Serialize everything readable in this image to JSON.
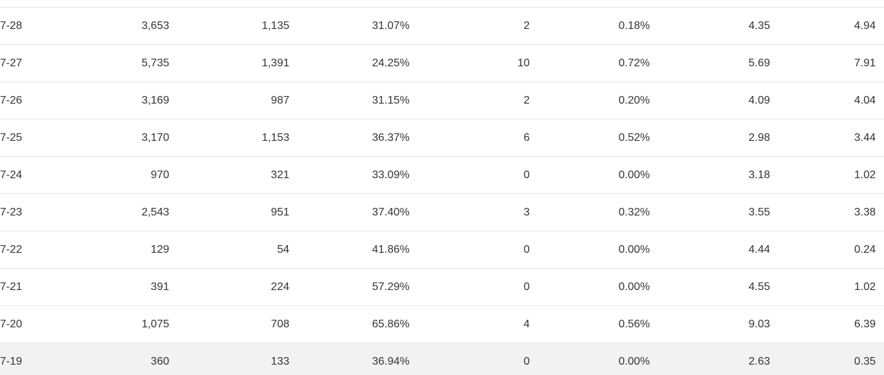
{
  "table": {
    "rows": [
      {
        "date": "7-28",
        "c1": "3,653",
        "c2": "1,135",
        "c3": "31.07%",
        "c4": "2",
        "c5": "0.18%",
        "c6": "4.35",
        "c7": "4.94"
      },
      {
        "date": "7-27",
        "c1": "5,735",
        "c2": "1,391",
        "c3": "24.25%",
        "c4": "10",
        "c5": "0.72%",
        "c6": "5.69",
        "c7": "7.91"
      },
      {
        "date": "7-26",
        "c1": "3,169",
        "c2": "987",
        "c3": "31.15%",
        "c4": "2",
        "c5": "0.20%",
        "c6": "4.09",
        "c7": "4.04"
      },
      {
        "date": "7-25",
        "c1": "3,170",
        "c2": "1,153",
        "c3": "36.37%",
        "c4": "6",
        "c5": "0.52%",
        "c6": "2.98",
        "c7": "3.44"
      },
      {
        "date": "7-24",
        "c1": "970",
        "c2": "321",
        "c3": "33.09%",
        "c4": "0",
        "c5": "0.00%",
        "c6": "3.18",
        "c7": "1.02"
      },
      {
        "date": "7-23",
        "c1": "2,543",
        "c2": "951",
        "c3": "37.40%",
        "c4": "3",
        "c5": "0.32%",
        "c6": "3.55",
        "c7": "3.38"
      },
      {
        "date": "7-22",
        "c1": "129",
        "c2": "54",
        "c3": "41.86%",
        "c4": "0",
        "c5": "0.00%",
        "c6": "4.44",
        "c7": "0.24"
      },
      {
        "date": "7-21",
        "c1": "391",
        "c2": "224",
        "c3": "57.29%",
        "c4": "0",
        "c5": "0.00%",
        "c6": "4.55",
        "c7": "1.02"
      },
      {
        "date": "7-20",
        "c1": "1,075",
        "c2": "708",
        "c3": "65.86%",
        "c4": "4",
        "c5": "0.56%",
        "c6": "9.03",
        "c7": "6.39"
      },
      {
        "date": "7-19",
        "c1": "360",
        "c2": "133",
        "c3": "36.94%",
        "c4": "0",
        "c5": "0.00%",
        "c6": "2.63",
        "c7": "0.35"
      }
    ]
  }
}
